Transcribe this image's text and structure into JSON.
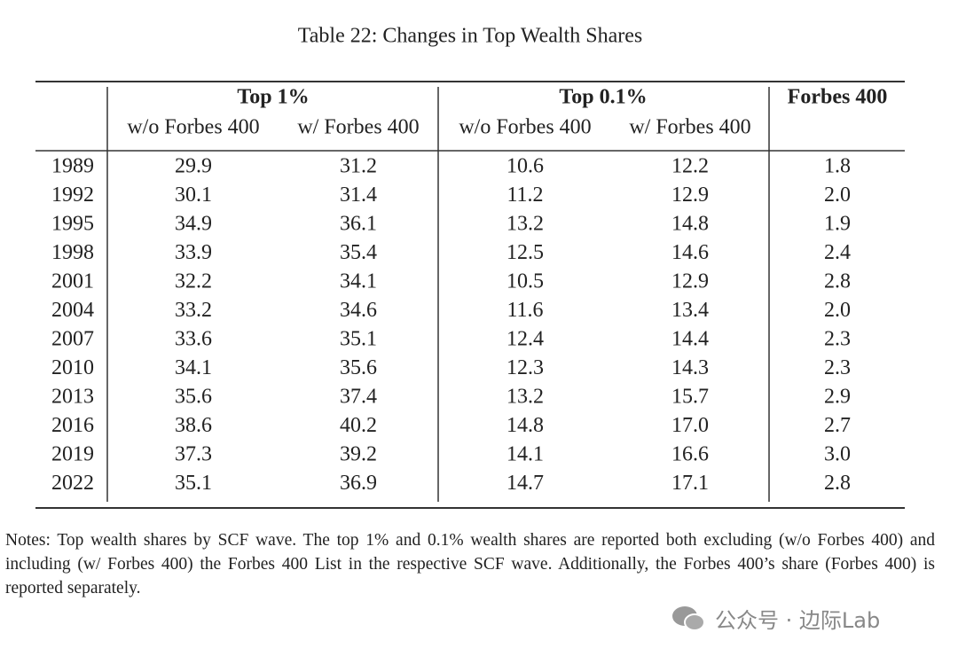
{
  "title": "Table 22: Changes in Top Wealth Shares",
  "table": {
    "groups": [
      "Top 1%",
      "Top 0.1%",
      "Forbes 400"
    ],
    "subheaders": [
      "w/o Forbes 400",
      "w/ Forbes 400",
      "w/o Forbes 400",
      "w/ Forbes 400"
    ],
    "rows": [
      [
        "1989",
        "29.9",
        "31.2",
        "10.6",
        "12.2",
        "1.8"
      ],
      [
        "1992",
        "30.1",
        "31.4",
        "11.2",
        "12.9",
        "2.0"
      ],
      [
        "1995",
        "34.9",
        "36.1",
        "13.2",
        "14.8",
        "1.9"
      ],
      [
        "1998",
        "33.9",
        "35.4",
        "12.5",
        "14.6",
        "2.4"
      ],
      [
        "2001",
        "32.2",
        "34.1",
        "10.5",
        "12.9",
        "2.8"
      ],
      [
        "2004",
        "33.2",
        "34.6",
        "11.6",
        "13.4",
        "2.0"
      ],
      [
        "2007",
        "33.6",
        "35.1",
        "12.4",
        "14.4",
        "2.3"
      ],
      [
        "2010",
        "34.1",
        "35.6",
        "12.3",
        "14.3",
        "2.3"
      ],
      [
        "2013",
        "35.6",
        "37.4",
        "13.2",
        "15.7",
        "2.9"
      ],
      [
        "2016",
        "38.6",
        "40.2",
        "14.8",
        "17.0",
        "2.7"
      ],
      [
        "2019",
        "37.3",
        "39.2",
        "14.1",
        "16.6",
        "3.0"
      ],
      [
        "2022",
        "35.1",
        "36.9",
        "14.7",
        "17.1",
        "2.8"
      ]
    ]
  },
  "notes": "Notes: Top wealth shares by SCF wave. The top 1% and 0.1% wealth shares are reported both excluding (w/o Forbes 400) and including (w/ Forbes 400) the Forbes 400 List in the respective SCF wave. Additionally, the Forbes 400’s share (Forbes 400) is reported separately.",
  "watermark": "公众号 · 边际Lab"
}
